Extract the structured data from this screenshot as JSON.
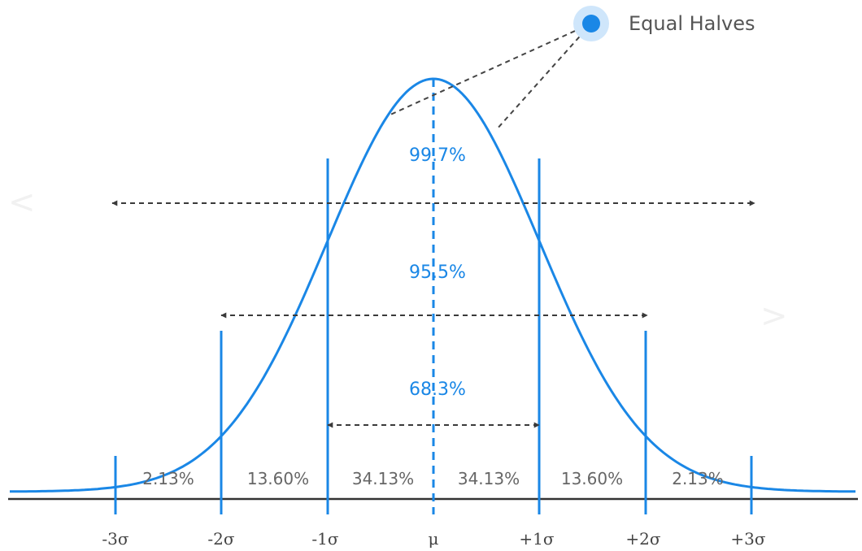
{
  "legend": {
    "label": "Equal Halves"
  },
  "nav": {
    "prev": "<",
    "next": ">"
  },
  "axis": {
    "ticks": [
      "-3σ",
      "-2σ",
      "-1σ",
      "μ",
      "+1σ",
      "+2σ",
      "+3σ"
    ]
  },
  "segments": [
    "2.13%",
    "13.60%",
    "34.13%",
    "34.13%",
    "13.60%",
    "2.13%"
  ],
  "bands": {
    "inner": "68.3%",
    "middle": "95.5%",
    "outer": "99.7%"
  },
  "colors": {
    "curve": "#1a87e6",
    "axis": "#333333",
    "arrow": "#3a3a3a",
    "legend_dot": "#1a87e6",
    "legend_halo": "#cfe6fb"
  }
}
